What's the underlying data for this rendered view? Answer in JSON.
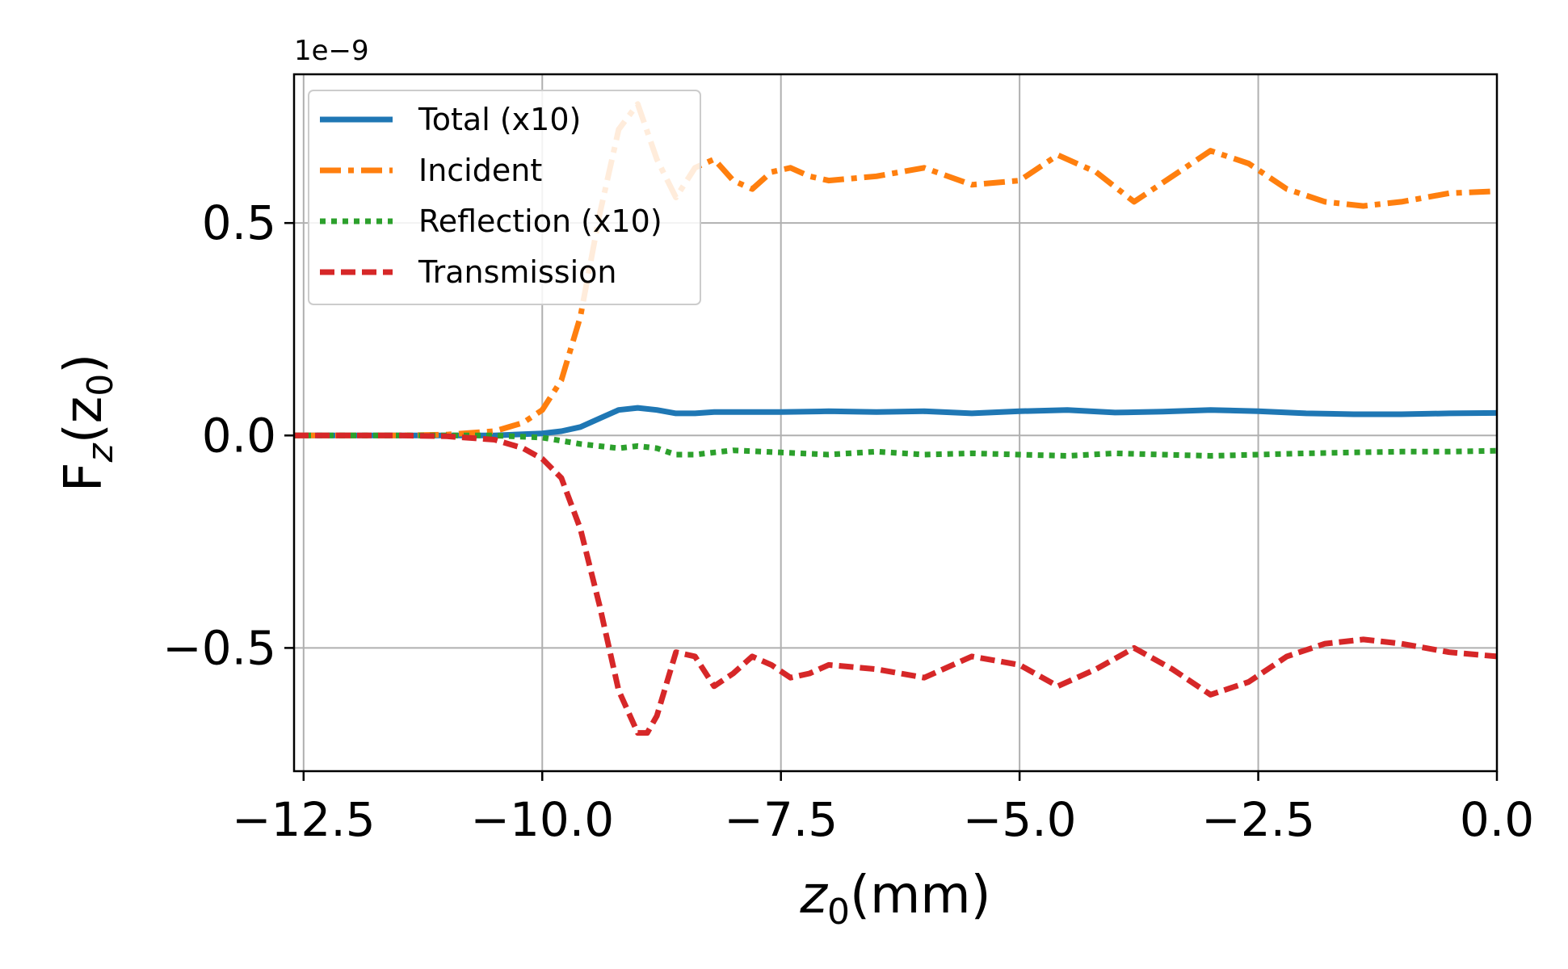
{
  "chart_data": {
    "type": "line",
    "xlabel": "z",
    "xlabel_sub": "0",
    "xlabel_unit": "(mm)",
    "ylabel": "F",
    "ylabel_sub": "z",
    "ylabel_arg": "(z",
    "ylabel_arg_sub": "0",
    "ylabel_close": ")",
    "y_offset_text": "1e−9",
    "xlim": [
      -12.6,
      0.0
    ],
    "ylim": [
      -0.79,
      0.85
    ],
    "x_ticks": [
      -12.5,
      -10.0,
      -7.5,
      -5.0,
      -2.5,
      0.0
    ],
    "x_tick_labels": [
      "−12.5",
      "−10.0",
      "−7.5",
      "−5.0",
      "−2.5",
      "0.0"
    ],
    "y_ticks": [
      -0.5,
      0.0,
      0.5
    ],
    "y_tick_labels": [
      "−0.5",
      "0.0",
      "0.5"
    ],
    "grid": true,
    "legend_position": "top-left",
    "series": [
      {
        "name": "Total (x10)",
        "color": "#1f77b4",
        "style": "solid",
        "x": [
          -12.6,
          -12.0,
          -11.5,
          -11.0,
          -10.5,
          -10.0,
          -9.8,
          -9.6,
          -9.4,
          -9.2,
          -9.0,
          -8.8,
          -8.6,
          -8.4,
          -8.2,
          -8.0,
          -7.5,
          -7.0,
          -6.5,
          -6.0,
          -5.5,
          -5.0,
          -4.5,
          -4.0,
          -3.5,
          -3.0,
          -2.5,
          -2.0,
          -1.5,
          -1.0,
          -0.5,
          0.0
        ],
        "y": [
          0.0,
          0.0,
          0.0,
          0.0,
          0.0,
          0.005,
          0.01,
          0.02,
          0.04,
          0.06,
          0.065,
          0.06,
          0.052,
          0.052,
          0.055,
          0.055,
          0.055,
          0.057,
          0.055,
          0.057,
          0.052,
          0.057,
          0.06,
          0.054,
          0.056,
          0.06,
          0.057,
          0.052,
          0.05,
          0.05,
          0.052,
          0.053
        ]
      },
      {
        "name": "Incident",
        "color": "#ff7f0e",
        "style": "dashdot",
        "x": [
          -12.6,
          -12.0,
          -11.5,
          -11.0,
          -10.5,
          -10.2,
          -10.0,
          -9.8,
          -9.6,
          -9.4,
          -9.2,
          -9.0,
          -8.8,
          -8.6,
          -8.4,
          -8.2,
          -8.0,
          -7.8,
          -7.6,
          -7.4,
          -7.2,
          -7.0,
          -6.5,
          -6.0,
          -5.5,
          -5.0,
          -4.6,
          -4.2,
          -3.8,
          -3.4,
          -3.0,
          -2.6,
          -2.2,
          -1.8,
          -1.4,
          -1.0,
          -0.5,
          0.0
        ],
        "y": [
          0.0,
          0.0,
          0.0,
          0.002,
          0.01,
          0.03,
          0.06,
          0.13,
          0.28,
          0.52,
          0.72,
          0.78,
          0.65,
          0.56,
          0.63,
          0.65,
          0.6,
          0.58,
          0.62,
          0.63,
          0.61,
          0.6,
          0.61,
          0.63,
          0.59,
          0.6,
          0.66,
          0.62,
          0.55,
          0.61,
          0.67,
          0.64,
          0.58,
          0.55,
          0.54,
          0.55,
          0.57,
          0.575
        ]
      },
      {
        "name": "Reflection (x10)",
        "color": "#2ca02c",
        "style": "dotted",
        "x": [
          -12.6,
          -12.0,
          -11.0,
          -10.5,
          -10.0,
          -9.6,
          -9.2,
          -9.0,
          -8.8,
          -8.6,
          -8.4,
          -8.2,
          -8.0,
          -7.5,
          -7.0,
          -6.5,
          -6.0,
          -5.5,
          -5.0,
          -4.5,
          -4.0,
          -3.5,
          -3.0,
          -2.5,
          -2.0,
          -1.5,
          -1.0,
          -0.5,
          0.0
        ],
        "y": [
          0.0,
          0.0,
          0.0,
          0.0,
          -0.005,
          -0.02,
          -0.03,
          -0.025,
          -0.03,
          -0.045,
          -0.045,
          -0.04,
          -0.035,
          -0.04,
          -0.045,
          -0.038,
          -0.045,
          -0.042,
          -0.045,
          -0.048,
          -0.042,
          -0.045,
          -0.048,
          -0.045,
          -0.042,
          -0.04,
          -0.038,
          -0.038,
          -0.036
        ]
      },
      {
        "name": "Transmission",
        "color": "#d62728",
        "style": "dashed",
        "x": [
          -12.6,
          -12.0,
          -11.5,
          -11.0,
          -10.5,
          -10.2,
          -10.0,
          -9.8,
          -9.6,
          -9.4,
          -9.2,
          -9.0,
          -8.9,
          -8.8,
          -8.6,
          -8.4,
          -8.2,
          -8.0,
          -7.8,
          -7.6,
          -7.4,
          -7.2,
          -7.0,
          -6.5,
          -6.0,
          -5.5,
          -5.0,
          -4.6,
          -4.2,
          -3.8,
          -3.4,
          -3.0,
          -2.6,
          -2.2,
          -1.8,
          -1.4,
          -1.0,
          -0.5,
          0.0
        ],
        "y": [
          0.0,
          0.0,
          0.0,
          -0.002,
          -0.01,
          -0.03,
          -0.055,
          -0.1,
          -0.22,
          -0.4,
          -0.6,
          -0.7,
          -0.7,
          -0.66,
          -0.51,
          -0.52,
          -0.59,
          -0.56,
          -0.52,
          -0.54,
          -0.57,
          -0.56,
          -0.54,
          -0.55,
          -0.57,
          -0.52,
          -0.54,
          -0.59,
          -0.55,
          -0.5,
          -0.55,
          -0.61,
          -0.58,
          -0.52,
          -0.49,
          -0.48,
          -0.49,
          -0.51,
          -0.52
        ]
      }
    ]
  }
}
